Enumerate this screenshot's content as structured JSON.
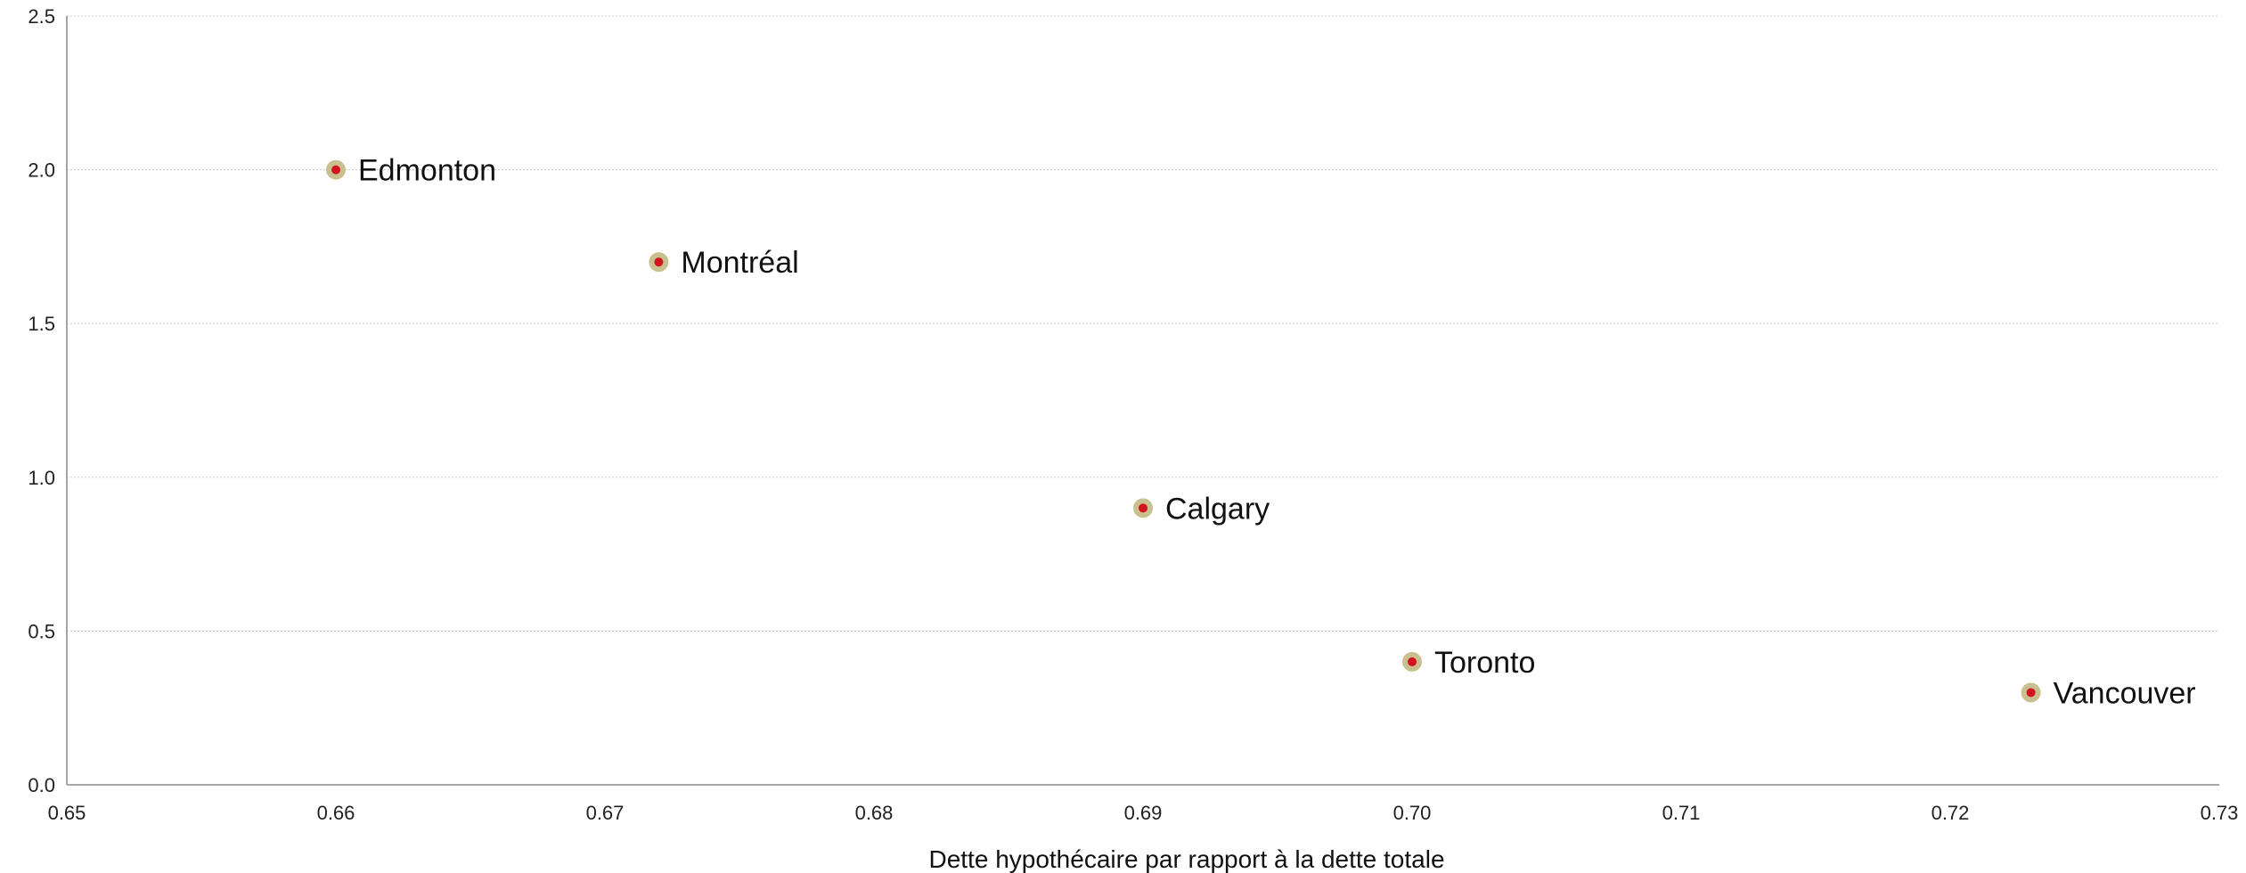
{
  "chart_data": {
    "type": "scatter",
    "title": "",
    "xlabel": "Dette hypothécaire par rapport à la dette totale",
    "ylabel": "",
    "xlim": [
      0.65,
      0.73
    ],
    "ylim": [
      0.0,
      2.5
    ],
    "x_ticks": [
      "0.65",
      "0.66",
      "0.67",
      "0.68",
      "0.69",
      "0.70",
      "0.71",
      "0.72",
      "0.73"
    ],
    "y_ticks": [
      "0.0",
      "0.5",
      "1.0",
      "1.5",
      "2.0",
      "2.5"
    ],
    "grid": "horizontal",
    "points": [
      {
        "label": "Edmonton",
        "x": 0.66,
        "y": 2.0
      },
      {
        "label": "Montréal",
        "x": 0.672,
        "y": 1.7
      },
      {
        "label": "Calgary",
        "x": 0.69,
        "y": 0.9
      },
      {
        "label": "Toronto",
        "x": 0.7,
        "y": 0.4
      },
      {
        "label": "Vancouver",
        "x": 0.723,
        "y": 0.3
      }
    ],
    "colors": {
      "marker_outer": "#c9c08f",
      "marker_inner": "#d2141f",
      "grid": "#c8c8c8",
      "axis": "#a6a6a6"
    }
  }
}
